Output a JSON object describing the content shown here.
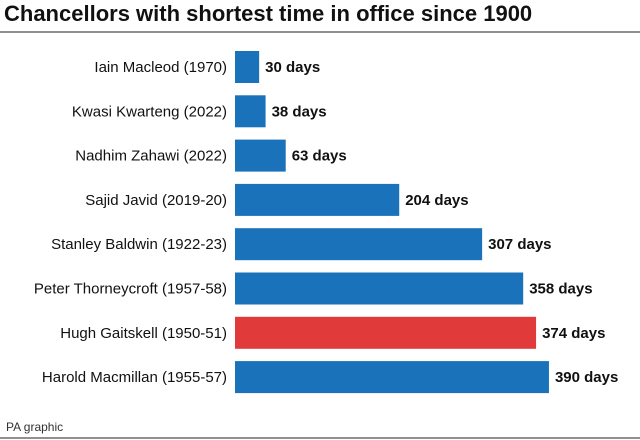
{
  "chart_data": {
    "type": "hbar",
    "title": "Chancellors with shortest time in office since 1900",
    "categories": [
      "Iain Macleod (1970)",
      "Kwasi Kwarteng (2022)",
      "Nadhim Zahawi (2022)",
      "Sajid Javid (2019-20)",
      "Stanley Baldwin (1922-23)",
      "Peter Thorneycroft (1957-58)",
      "Hugh Gaitskell (1950-51)",
      "Harold Macmillan (1955-57)"
    ],
    "values": [
      30,
      38,
      63,
      204,
      307,
      358,
      374,
      390
    ],
    "value_labels": [
      "30 days",
      "38 days",
      "63 days",
      "204 days",
      "307 days",
      "358 days",
      "374 days",
      "390 days"
    ],
    "colors": [
      "#1a72bb",
      "#1a72bb",
      "#1a72bb",
      "#1a72bb",
      "#1a72bb",
      "#1a72bb",
      "#e03a3a",
      "#1a72bb"
    ],
    "source": "PA graphic"
  }
}
